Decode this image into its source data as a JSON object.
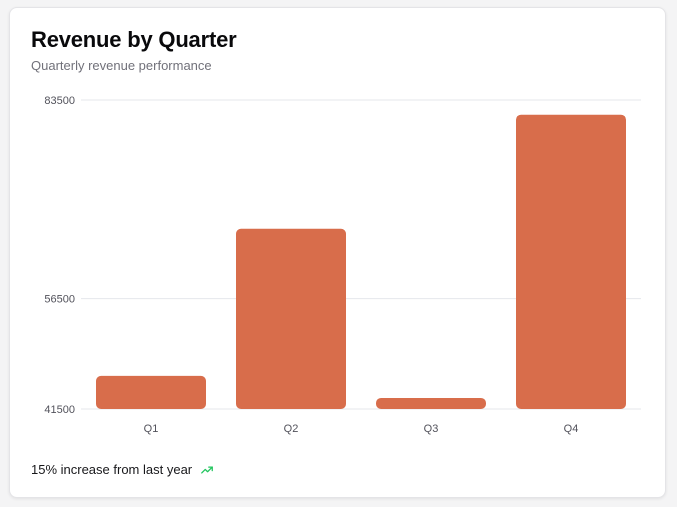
{
  "card": {
    "title": "Revenue by Quarter",
    "subtitle": "Quarterly revenue performance",
    "footer_text": "15% increase from last year",
    "footer_icon": "trending-up-icon"
  },
  "colors": {
    "bar": "#d86d4b",
    "grid": "#e5e7eb",
    "trend": "#22c55e"
  },
  "chart_data": {
    "type": "bar",
    "categories": [
      "Q1",
      "Q2",
      "Q3",
      "Q4"
    ],
    "values": [
      46000,
      66000,
      43000,
      81500
    ],
    "ylim": [
      41500,
      83500
    ],
    "yticks": [
      41500,
      56500,
      83500
    ],
    "grid": true
  }
}
